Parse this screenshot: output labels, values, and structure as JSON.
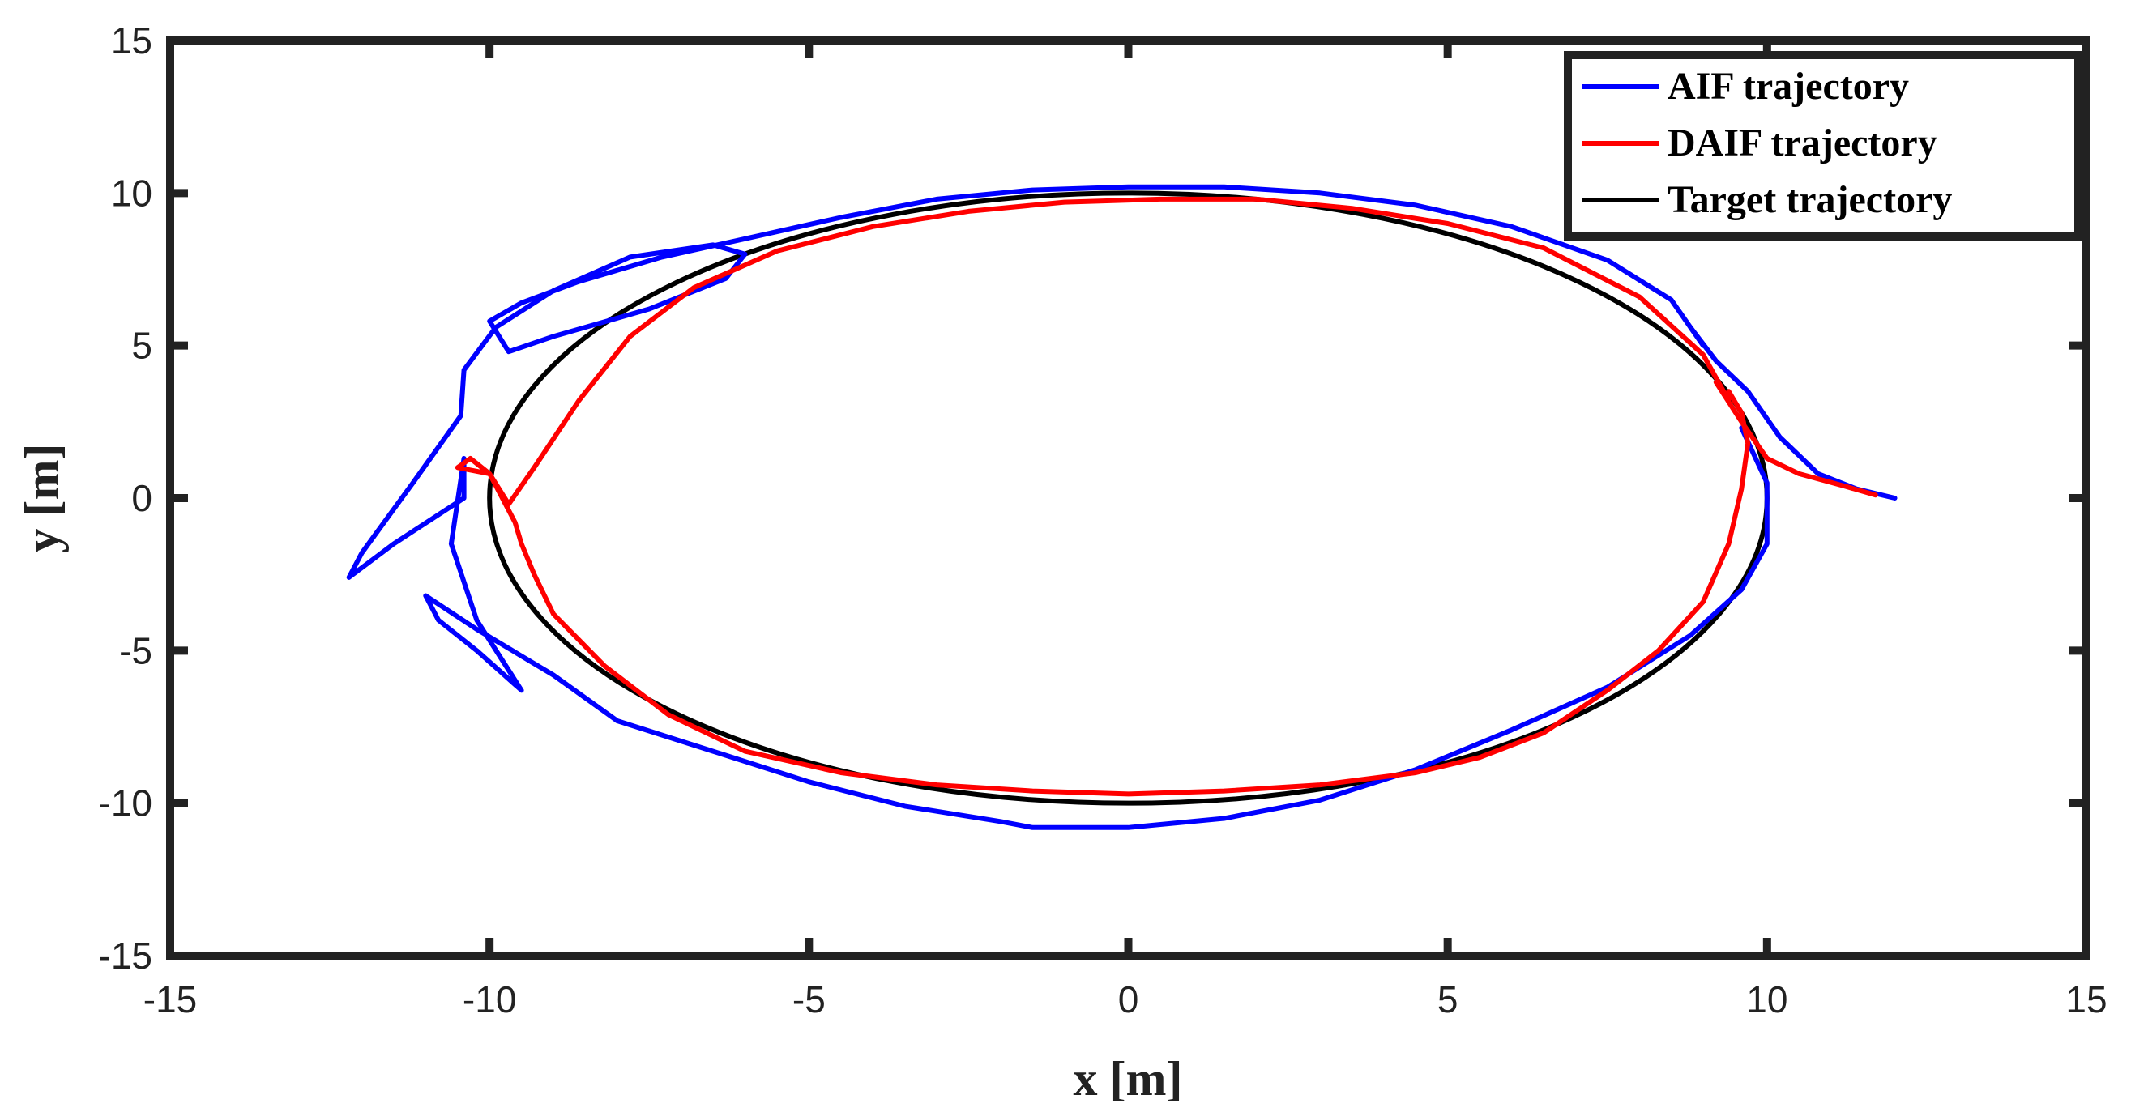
{
  "chart_data": {
    "type": "line",
    "title": "",
    "xlabel": "x [m]",
    "ylabel": "y [m]",
    "xlim": [
      -15,
      15
    ],
    "ylim": [
      -15,
      15
    ],
    "xticks": [
      -15,
      -10,
      -5,
      0,
      5,
      10,
      15
    ],
    "yticks": [
      -15,
      -10,
      -5,
      0,
      5,
      10,
      15
    ],
    "xtick_labels": [
      "-15",
      "-10",
      "-5",
      "0",
      "5",
      "10",
      "15"
    ],
    "ytick_labels": [
      "-15",
      "-10",
      "-5",
      "0",
      "5",
      "10",
      "15"
    ],
    "grid": false,
    "legend_position": "top-right",
    "series": [
      {
        "name": "AIF trajectory",
        "color": "#0000ff",
        "x": [
          12.0,
          11.4,
          10.8,
          10.2,
          9.7,
          9.2,
          8.8,
          9.0,
          8.5,
          7.5,
          6.0,
          4.5,
          3.0,
          1.5,
          0.0,
          -1.5,
          -3.0,
          -4.5,
          -6.0,
          -7.3,
          -8.6,
          -9.5,
          -10.0,
          -9.7,
          -9.0,
          -7.5,
          -6.3,
          -6.0,
          -6.5,
          -7.8,
          -9.0,
          -9.9,
          -10.4,
          -10.45,
          -11.2,
          -12.0,
          -12.2,
          -11.5,
          -10.4,
          -10.4,
          -10.6,
          -10.2,
          -9.5,
          -10.2,
          -10.8,
          -11.0,
          -10.2,
          -9.0,
          -8.0,
          -6.5,
          -5.0,
          -3.5,
          -2.0,
          -1.5,
          0.0,
          1.5,
          3.0,
          4.5,
          6.0,
          7.5,
          8.8,
          9.6,
          10.0,
          10.0,
          9.6
        ],
        "y": [
          0.0,
          0.3,
          0.8,
          2.0,
          3.5,
          4.5,
          5.6,
          5.0,
          6.5,
          7.8,
          8.9,
          9.6,
          10.0,
          10.2,
          10.2,
          10.1,
          9.8,
          9.2,
          8.5,
          7.9,
          7.1,
          6.4,
          5.8,
          4.8,
          5.3,
          6.2,
          7.2,
          8.0,
          8.3,
          7.9,
          6.8,
          5.6,
          4.2,
          2.7,
          0.5,
          -1.8,
          -2.6,
          -1.5,
          0.0,
          1.3,
          -1.5,
          -4.0,
          -6.3,
          -5.0,
          -4.0,
          -3.2,
          -4.3,
          -5.8,
          -7.3,
          -8.3,
          -9.3,
          -10.1,
          -10.6,
          -10.8,
          -10.8,
          -10.5,
          -9.9,
          -8.9,
          -7.6,
          -6.2,
          -4.5,
          -3.0,
          -1.5,
          0.5,
          2.3
        ]
      },
      {
        "name": "DAIF trajectory",
        "color": "#ff0000",
        "x": [
          11.7,
          11.2,
          10.5,
          10.0,
          9.6,
          9.2,
          9.4,
          9.0,
          8.0,
          6.5,
          5.0,
          3.5,
          2.0,
          0.5,
          -1.0,
          -2.5,
          -4.0,
          -5.5,
          -6.8,
          -7.8,
          -8.6,
          -9.3,
          -9.7,
          -10.0,
          -10.3,
          -10.5,
          -10.0,
          -9.6,
          -9.5,
          -9.3,
          -9.0,
          -8.2,
          -7.2,
          -6.0,
          -4.5,
          -3.0,
          -1.5,
          0.0,
          1.5,
          3.0,
          4.5,
          5.5,
          6.5,
          7.5,
          8.3,
          9.0,
          9.4,
          9.6,
          9.7,
          9.6,
          9.4
        ],
        "y": [
          0.1,
          0.4,
          0.8,
          1.3,
          2.5,
          3.8,
          3.2,
          4.7,
          6.6,
          8.2,
          9.0,
          9.5,
          9.8,
          9.8,
          9.7,
          9.4,
          8.9,
          8.1,
          6.9,
          5.3,
          3.2,
          1.0,
          -0.2,
          0.8,
          1.3,
          1.0,
          0.8,
          -0.8,
          -1.5,
          -2.5,
          -3.8,
          -5.5,
          -7.1,
          -8.3,
          -9.0,
          -9.4,
          -9.6,
          -9.7,
          -9.6,
          -9.4,
          -9.0,
          -8.5,
          -7.7,
          -6.3,
          -5.0,
          -3.4,
          -1.5,
          0.3,
          1.8,
          2.8,
          3.5
        ]
      },
      {
        "name": "Target trajectory",
        "color": "#000000",
        "shape": "ellipse",
        "center": [
          0,
          0
        ],
        "radius_x": 10,
        "radius_y": 10
      }
    ]
  }
}
